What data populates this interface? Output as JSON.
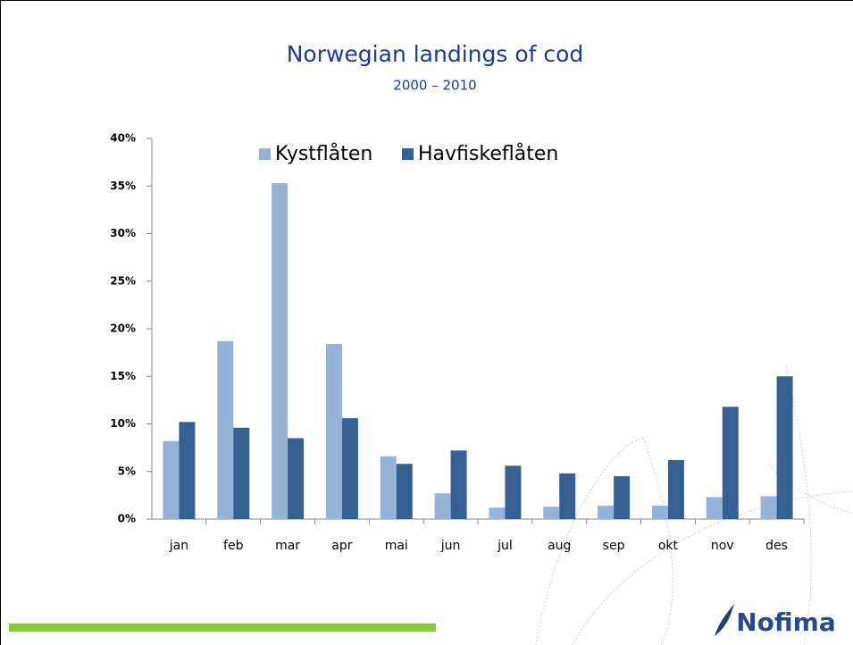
{
  "chart_data": {
    "type": "bar",
    "title": "Norwegian landings of cod",
    "subtitle": "2000 – 2010",
    "categories": [
      "jan",
      "feb",
      "mar",
      "apr",
      "mai",
      "jun",
      "jul",
      "aug",
      "sep",
      "okt",
      "nov",
      "des"
    ],
    "series": [
      {
        "name": "Kystflåten",
        "color": "#95b3d7",
        "values": [
          8.2,
          18.7,
          35.3,
          18.4,
          6.6,
          2.7,
          1.2,
          1.3,
          1.4,
          1.4,
          2.3,
          2.4
        ]
      },
      {
        "name": "Havfiskeflåten",
        "color": "#376092",
        "values": [
          10.2,
          9.6,
          8.5,
          10.6,
          5.8,
          7.2,
          5.6,
          4.8,
          4.5,
          6.2,
          11.8,
          15.0
        ]
      }
    ],
    "ylim": [
      0,
      40
    ],
    "yticks": [
      {
        "value": 0,
        "label": "0%"
      },
      {
        "value": 5,
        "label": "5%"
      },
      {
        "value": 10,
        "label": "10%"
      },
      {
        "value": 15,
        "label": "15%"
      },
      {
        "value": 20,
        "label": "20%"
      },
      {
        "value": 25,
        "label": "25%"
      },
      {
        "value": 30,
        "label": "30%"
      },
      {
        "value": 35,
        "label": "35%"
      },
      {
        "value": 40,
        "label": "40%"
      }
    ],
    "legend": "top",
    "logo": "Nofima"
  }
}
